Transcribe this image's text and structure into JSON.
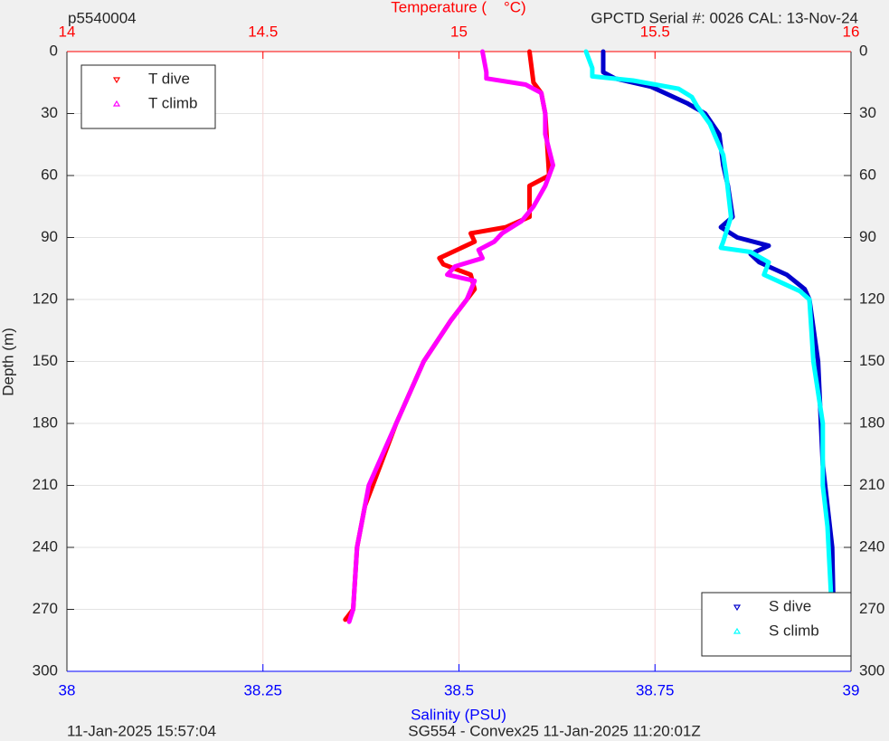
{
  "chart_data": {
    "type": "line",
    "title": "p5540004",
    "subtitle": "GPCTD Serial #: 0026 CAL: 13-Nov-24",
    "x2_label": "Temperature (    °C)",
    "x_label": "Salinity (PSU)",
    "y_label": "Depth (m)",
    "footer_left": "11-Jan-2025 15:57:04",
    "footer_center": "SG554 - Convex25 11-Jan-2025 11:20:01Z",
    "xlim": [
      38,
      39
    ],
    "xticks": [
      38,
      38.25,
      38.5,
      38.75,
      39
    ],
    "x_color": "#0000ff",
    "x2lim": [
      14,
      16
    ],
    "x2ticks": [
      14,
      14.5,
      15,
      15.5,
      16
    ],
    "x2_color": "#ff0000",
    "ylim": [
      0,
      300
    ],
    "yticks": [
      0,
      30,
      60,
      90,
      120,
      150,
      180,
      210,
      240,
      270,
      300
    ],
    "y_reversed": true,
    "grid": true,
    "series": [
      {
        "name": "T dive",
        "color": "#ff0000",
        "axis": "x2",
        "marker": "down",
        "legend_corner": "upper left",
        "values": [
          15.18,
          15.19,
          15.21,
          15.22,
          15.23,
          15.18,
          15.18,
          15.12,
          15.03,
          15.04,
          14.95,
          14.96,
          15.03,
          15.04,
          15.02,
          14.98,
          14.91,
          14.84,
          14.8,
          14.76,
          14.74,
          14.73,
          14.71
        ],
        "depth": [
          0,
          15,
          20,
          30,
          60,
          65,
          80,
          85,
          88,
          92,
          100,
          103,
          108,
          115,
          120,
          130,
          150,
          180,
          200,
          220,
          240,
          270,
          275
        ]
      },
      {
        "name": "T climb",
        "color": "#ff00ff",
        "axis": "x2",
        "marker": "up",
        "legend_corner": "upper left",
        "values": [
          15.06,
          15.07,
          15.07,
          15.17,
          15.21,
          15.22,
          15.22,
          15.24,
          15.22,
          15.19,
          15.16,
          15.11,
          15.09,
          15.05,
          15.06,
          14.99,
          14.97,
          15.04,
          15.02,
          14.98,
          14.91,
          14.84,
          14.77,
          14.74,
          14.73,
          14.72
        ],
        "depth": [
          0,
          10,
          13,
          16,
          20,
          30,
          40,
          55,
          65,
          75,
          82,
          88,
          92,
          96,
          100,
          104,
          108,
          111,
          120,
          130,
          150,
          180,
          210,
          240,
          270,
          276
        ]
      },
      {
        "name": "S dive",
        "color": "#0000cc",
        "axis": "x",
        "marker": "down",
        "legend_corner": "lower right",
        "values": [
          38.684,
          38.684,
          38.699,
          38.745,
          38.791,
          38.814,
          38.832,
          38.837,
          38.843,
          38.849,
          38.834,
          38.855,
          38.895,
          38.872,
          38.883,
          38.918,
          38.941,
          38.947,
          38.958,
          38.964,
          38.976,
          38.978
        ],
        "depth": [
          0,
          10,
          13,
          17,
          25,
          30,
          40,
          55,
          65,
          80,
          85,
          90,
          94,
          98,
          102,
          108,
          115,
          120,
          150,
          200,
          240,
          275
        ]
      },
      {
        "name": "S climb",
        "color": "#00ffff",
        "axis": "x",
        "marker": "up",
        "legend_corner": "lower right",
        "values": [
          38.662,
          38.67,
          38.67,
          38.722,
          38.78,
          38.797,
          38.803,
          38.82,
          38.837,
          38.841,
          38.847,
          38.837,
          38.834,
          38.872,
          38.895,
          38.889,
          38.912,
          38.935,
          38.947,
          38.952,
          38.964,
          38.964,
          38.97,
          38.976
        ],
        "depth": [
          0,
          8,
          12,
          14,
          18,
          22,
          26,
          35,
          50,
          60,
          80,
          92,
          95,
          97,
          102,
          108,
          112,
          116,
          120,
          150,
          180,
          210,
          230,
          274
        ]
      }
    ]
  }
}
